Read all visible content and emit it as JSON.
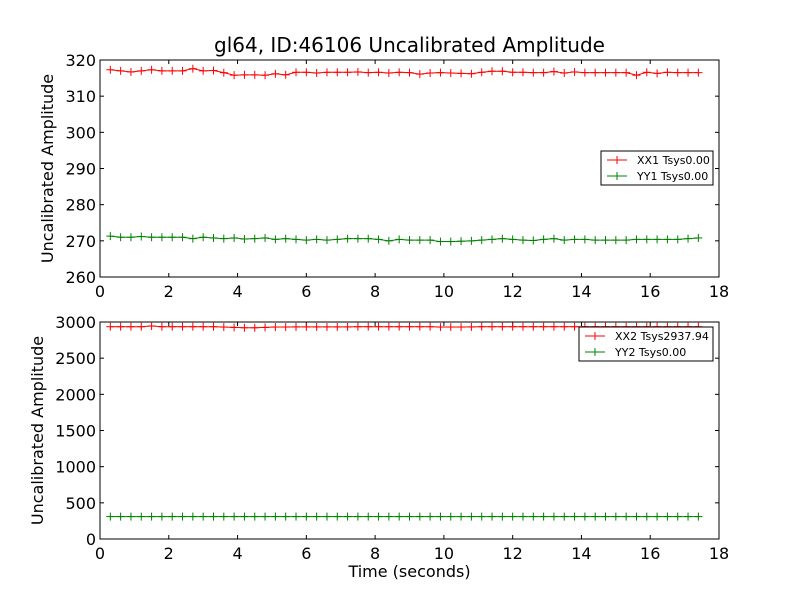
{
  "chart_data": [
    {
      "type": "line",
      "title": "gl64, ID:46106 Uncalibrated Amplitude",
      "xlabel": "",
      "ylabel": "Uncalibrated Amplitude",
      "xlim": [
        0,
        18
      ],
      "ylim": [
        260,
        320
      ],
      "xticks": [
        0,
        2,
        4,
        6,
        8,
        10,
        12,
        14,
        16,
        18
      ],
      "yticks": [
        260,
        270,
        280,
        290,
        300,
        310,
        320
      ],
      "grid": false,
      "legend_position": "center-right",
      "x": [
        0.3,
        0.6,
        0.9,
        1.2,
        1.5,
        1.8,
        2.1,
        2.4,
        2.7,
        3.0,
        3.3,
        3.6,
        3.9,
        4.2,
        4.5,
        4.8,
        5.1,
        5.4,
        5.7,
        6.0,
        6.3,
        6.6,
        6.9,
        7.2,
        7.5,
        7.8,
        8.1,
        8.4,
        8.7,
        9.0,
        9.3,
        9.6,
        9.9,
        10.2,
        10.5,
        10.8,
        11.1,
        11.4,
        11.7,
        12.0,
        12.3,
        12.6,
        12.9,
        13.2,
        13.5,
        13.8,
        14.1,
        14.4,
        14.7,
        15.0,
        15.3,
        15.6,
        15.9,
        16.2,
        16.5,
        16.8,
        17.1,
        17.4
      ],
      "series": [
        {
          "name": "XX1 Tsys0.00",
          "color": "#ff0000",
          "values": [
            317.3,
            317.0,
            316.7,
            317.0,
            317.3,
            317.0,
            317.0,
            317.0,
            317.6,
            317.0,
            317.1,
            316.5,
            315.8,
            315.9,
            315.9,
            315.8,
            316.2,
            315.9,
            316.6,
            316.6,
            316.4,
            316.6,
            316.6,
            316.6,
            316.7,
            316.5,
            316.6,
            316.4,
            316.6,
            316.5,
            316.1,
            316.4,
            316.5,
            316.4,
            316.3,
            316.2,
            316.6,
            316.9,
            316.9,
            316.6,
            316.6,
            316.5,
            316.5,
            316.8,
            316.4,
            316.7,
            316.5,
            316.5,
            316.5,
            316.5,
            316.5,
            315.8,
            316.6,
            316.3,
            316.6,
            316.5,
            316.5,
            316.5
          ]
        },
        {
          "name": "YY1 Tsys0.00",
          "color": "#008000",
          "values": [
            271.3,
            271.0,
            271.0,
            271.2,
            271.0,
            271.0,
            271.0,
            271.0,
            270.6,
            271.0,
            270.8,
            270.6,
            270.8,
            270.5,
            270.6,
            270.8,
            270.4,
            270.6,
            270.4,
            270.2,
            270.4,
            270.2,
            270.4,
            270.6,
            270.6,
            270.6,
            270.4,
            270.0,
            270.4,
            270.2,
            270.2,
            270.2,
            269.8,
            269.8,
            269.9,
            270.0,
            270.2,
            270.4,
            270.6,
            270.4,
            270.2,
            270.1,
            270.4,
            270.6,
            270.2,
            270.4,
            270.4,
            270.2,
            270.2,
            270.2,
            270.2,
            270.4,
            270.4,
            270.4,
            270.4,
            270.4,
            270.6,
            270.8
          ]
        }
      ]
    },
    {
      "type": "line",
      "title": "",
      "xlabel": "Time (seconds)",
      "ylabel": "Uncalibrated Amplitude",
      "xlim": [
        0,
        18
      ],
      "ylim": [
        0,
        3000
      ],
      "xticks": [
        0,
        2,
        4,
        6,
        8,
        10,
        12,
        14,
        16,
        18
      ],
      "yticks": [
        0,
        500,
        1000,
        1500,
        2000,
        2500,
        3000
      ],
      "grid": false,
      "legend_position": "top-right",
      "x": [
        0.3,
        0.6,
        0.9,
        1.2,
        1.5,
        1.8,
        2.1,
        2.4,
        2.7,
        3.0,
        3.3,
        3.6,
        3.9,
        4.2,
        4.5,
        4.8,
        5.1,
        5.4,
        5.7,
        6.0,
        6.3,
        6.6,
        6.9,
        7.2,
        7.5,
        7.8,
        8.1,
        8.4,
        8.7,
        9.0,
        9.3,
        9.6,
        9.9,
        10.2,
        10.5,
        10.8,
        11.1,
        11.4,
        11.7,
        12.0,
        12.3,
        12.6,
        12.9,
        13.2,
        13.5,
        13.8,
        14.1,
        14.4,
        14.7,
        15.0,
        15.3,
        15.6,
        15.9,
        16.2,
        16.5,
        16.8,
        17.1,
        17.4
      ],
      "series": [
        {
          "name": "XX2 Tsys2937.94",
          "color": "#ff0000",
          "values": [
            2935,
            2935,
            2935,
            2935,
            2945,
            2935,
            2935,
            2935,
            2935,
            2935,
            2935,
            2930,
            2925,
            2920,
            2920,
            2925,
            2930,
            2930,
            2932,
            2932,
            2932,
            2932,
            2932,
            2932,
            2935,
            2935,
            2935,
            2935,
            2935,
            2935,
            2935,
            2935,
            2930,
            2930,
            2930,
            2932,
            2935,
            2935,
            2935,
            2935,
            2935,
            2935,
            2935,
            2935,
            2935,
            2935,
            2935,
            2935,
            2935,
            2935,
            2935,
            2935,
            2935,
            2935,
            2935,
            2935,
            2935,
            2935
          ]
        },
        {
          "name": "YY2 Tsys0.00",
          "color": "#008000",
          "values": [
            310,
            310,
            310,
            310,
            310,
            310,
            310,
            310,
            310,
            310,
            310,
            310,
            310,
            310,
            310,
            310,
            310,
            310,
            310,
            310,
            310,
            310,
            310,
            310,
            310,
            310,
            310,
            310,
            310,
            310,
            310,
            310,
            310,
            310,
            310,
            310,
            310,
            310,
            310,
            310,
            310,
            310,
            310,
            310,
            310,
            310,
            310,
            310,
            310,
            310,
            310,
            310,
            310,
            310,
            310,
            310,
            310,
            310
          ]
        }
      ]
    }
  ]
}
